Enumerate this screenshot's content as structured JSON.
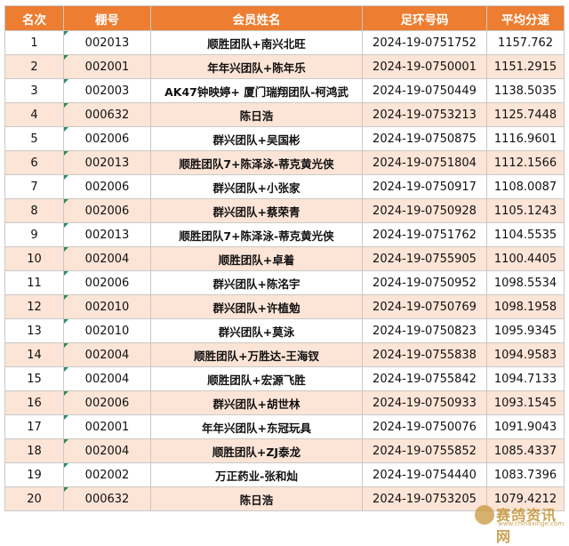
{
  "headers": [
    "名次",
    "棚号",
    "会员姓名",
    "足环号码",
    "平均分速"
  ],
  "rows": [
    {
      "rank": "1",
      "shed": "002013",
      "name": "顺胜团队+南兴北旺",
      "ring": "2024-19-0751752",
      "speed": "1157.762"
    },
    {
      "rank": "2",
      "shed": "002001",
      "name": "年年兴团队+陈年乐",
      "ring": "2024-19-0750001",
      "speed": "1151.2915"
    },
    {
      "rank": "3",
      "shed": "002003",
      "name": "AK47钟映婷+ 厦门瑞翔团队-柯鸿武",
      "ring": "2024-19-0750449",
      "speed": "1138.5035"
    },
    {
      "rank": "4",
      "shed": "000632",
      "name": "陈日浩",
      "ring": "2024-19-0753213",
      "speed": "1125.7448"
    },
    {
      "rank": "5",
      "shed": "002006",
      "name": "群兴团队+吴国彬",
      "ring": "2024-19-0750875",
      "speed": "1116.9601"
    },
    {
      "rank": "6",
      "shed": "002013",
      "name": "顺胜团队7+陈泽泳-蒂克黄光侠",
      "ring": "2024-19-0751804",
      "speed": "1112.1566"
    },
    {
      "rank": "7",
      "shed": "002006",
      "name": "群兴团队+小张家",
      "ring": "2024-19-0750917",
      "speed": "1108.0087"
    },
    {
      "rank": "8",
      "shed": "002006",
      "name": "群兴团队+蔡荣青",
      "ring": "2024-19-0750928",
      "speed": "1105.1243"
    },
    {
      "rank": "9",
      "shed": "002013",
      "name": "顺胜团队7+陈泽泳-蒂克黄光侠",
      "ring": "2024-19-0751762",
      "speed": "1104.5535"
    },
    {
      "rank": "10",
      "shed": "002004",
      "name": "顺胜团队+卓着",
      "ring": "2024-19-0755905",
      "speed": "1100.4405"
    },
    {
      "rank": "11",
      "shed": "002006",
      "name": "群兴团队+陈洺宇",
      "ring": "2024-19-0750952",
      "speed": "1098.5534"
    },
    {
      "rank": "12",
      "shed": "002010",
      "name": "群兴团队+许植勉",
      "ring": "2024-19-0750769",
      "speed": "1098.1958"
    },
    {
      "rank": "13",
      "shed": "002010",
      "name": "群兴团队+莫泳",
      "ring": "2024-19-0750823",
      "speed": "1095.9345"
    },
    {
      "rank": "14",
      "shed": "002004",
      "name": "顺胜团队+万胜达-王海钗",
      "ring": "2024-19-0755838",
      "speed": "1094.9583"
    },
    {
      "rank": "15",
      "shed": "002004",
      "name": "顺胜团队+宏源飞胜",
      "ring": "2024-19-0755842",
      "speed": "1094.7133"
    },
    {
      "rank": "16",
      "shed": "002006",
      "name": "群兴团队+胡世林",
      "ring": "2024-19-0750933",
      "speed": "1093.1545"
    },
    {
      "rank": "17",
      "shed": "002001",
      "name": "年年兴团队+东冠玩具",
      "ring": "2024-19-0750076",
      "speed": "1091.9043"
    },
    {
      "rank": "18",
      "shed": "002004",
      "name": "顺胜团队+ZJ泰龙",
      "ring": "2024-19-0755852",
      "speed": "1085.4337"
    },
    {
      "rank": "19",
      "shed": "002002",
      "name": "万正药业-张和灿",
      "ring": "2024-19-0754440",
      "speed": "1083.7396"
    },
    {
      "rank": "20",
      "shed": "000632",
      "name": "陈日浩",
      "ring": "2024-19-0753205",
      "speed": "1079.4212"
    }
  ],
  "colors": {
    "header_bg": "#ed7d31",
    "stripe": "#fce4d6"
  },
  "watermark": {
    "text": "赛鸽资讯网",
    "sub": "www.chinaxinge.com"
  }
}
